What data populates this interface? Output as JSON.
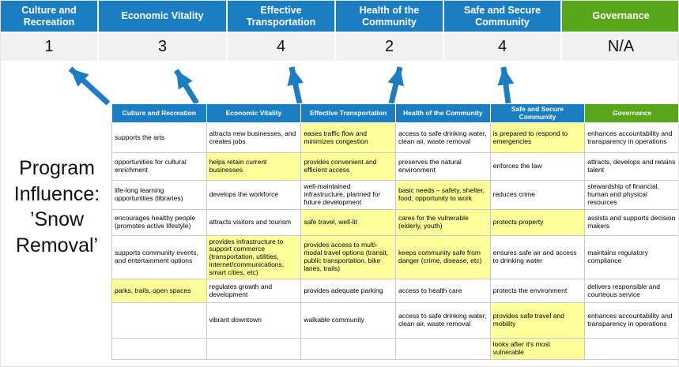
{
  "page": {
    "title": "Program Influence: ’Snow Removal’"
  },
  "colors": {
    "blue": "#1B7EC3",
    "green": "#58A71A",
    "highlight": "#FFFF99",
    "arrow": "#1E7CC0",
    "score_bg": "#F2F2F2"
  },
  "summary": {
    "columns": [
      {
        "label": "Culture and Recreation",
        "score": "1",
        "theme": "blue"
      },
      {
        "label": "Economic Vitality",
        "score": "3",
        "theme": "blue"
      },
      {
        "label": "Effective Transportation",
        "score": "4",
        "theme": "blue"
      },
      {
        "label": "Health of the Community",
        "score": "2",
        "theme": "blue"
      },
      {
        "label": "Safe and Secure Community",
        "score": "4",
        "theme": "blue"
      },
      {
        "label": "Governance",
        "score": "N/A",
        "theme": "green"
      }
    ]
  },
  "table": {
    "headers": [
      {
        "label": "Culture and Recreation",
        "theme": "blue"
      },
      {
        "label": "Economic Vitality",
        "theme": "blue"
      },
      {
        "label": "Effective Transportation",
        "theme": "blue"
      },
      {
        "label": "Health of the Community",
        "theme": "blue"
      },
      {
        "label": "Safe and Secure Community",
        "theme": "blue"
      },
      {
        "label": "Governance",
        "theme": "green"
      }
    ],
    "rows": [
      [
        {
          "text": "supports the arts",
          "highlight": false
        },
        {
          "text": "attracts new businesses, and creates jobs",
          "highlight": false
        },
        {
          "text": "eases traffic flow and minimizes congestion",
          "highlight": true
        },
        {
          "text": "access to safe drinking water, clean air, waste removal",
          "highlight": false
        },
        {
          "text": "is prepared to respond to emergencies",
          "highlight": true
        },
        {
          "text": "enhances accountability and transparency in operations",
          "highlight": false
        }
      ],
      [
        {
          "text": "opportunities for cultural enrichment",
          "highlight": false
        },
        {
          "text": "helps retain current businesses",
          "highlight": true
        },
        {
          "text": "provides convenient and efficient access",
          "highlight": true
        },
        {
          "text": "preserves the natural environment",
          "highlight": false
        },
        {
          "text": "enforces the law",
          "highlight": false
        },
        {
          "text": "attracts, develops and retains talent",
          "highlight": false
        }
      ],
      [
        {
          "text": "life-long learning opportunities (libraries)",
          "highlight": false
        },
        {
          "text": "develops the workforce",
          "highlight": false
        },
        {
          "text": "well-maintained infrastructure, planned for future development",
          "highlight": false
        },
        {
          "text": "basic needs – safety, shelter, food, opportunity to work",
          "highlight": true
        },
        {
          "text": "reduces crime",
          "highlight": false
        },
        {
          "text": "stewardship of financial, human and physical resources",
          "highlight": false
        }
      ],
      [
        {
          "text": "encourages healthy people (promotes active lifestyle)",
          "highlight": false
        },
        {
          "text": "attracts visitors and tourism",
          "highlight": false
        },
        {
          "text": "safe travel, well-lit",
          "highlight": true
        },
        {
          "text": "cares for the vulnerable (elderly, youth)",
          "highlight": true
        },
        {
          "text": "protects property",
          "highlight": true
        },
        {
          "text": "assists and supports decision makers",
          "highlight": false
        }
      ],
      [
        {
          "text": "supports community events, and entertainment options",
          "highlight": false
        },
        {
          "text": "provides infrastructure to support commerce (transportation, utilities, internet/communications, smart cities, etc)",
          "highlight": true
        },
        {
          "text": "provides access to multi-modal travel options (transit, public transportation, bike lanes, trails)",
          "highlight": true
        },
        {
          "text": "keeps community safe from danger (crime, disease, etc)",
          "highlight": true
        },
        {
          "text": "ensures safe air and access to drinking water",
          "highlight": false
        },
        {
          "text": "maintains regulatory compliance",
          "highlight": false
        }
      ],
      [
        {
          "text": "parks, trails, open spaces",
          "highlight": true
        },
        {
          "text": "regulates growth and development",
          "highlight": false
        },
        {
          "text": "provides adequate parking",
          "highlight": false
        },
        {
          "text": "access to health care",
          "highlight": false
        },
        {
          "text": "protects the environment",
          "highlight": false
        },
        {
          "text": "delivers responsible and courteous service",
          "highlight": false
        }
      ],
      [
        {
          "text": "",
          "highlight": false
        },
        {
          "text": "vibrant downtown",
          "highlight": false
        },
        {
          "text": "walkable community",
          "highlight": false
        },
        {
          "text": "access to safe drinking water, clean air, waste removal",
          "highlight": false
        },
        {
          "text": "provides safe travel and mobility",
          "highlight": true
        },
        {
          "text": "enhances accountability and transparency in operations",
          "highlight": false
        }
      ],
      [
        {
          "text": "",
          "highlight": false
        },
        {
          "text": "",
          "highlight": false
        },
        {
          "text": "",
          "highlight": false
        },
        {
          "text": "",
          "highlight": false
        },
        {
          "text": "looks after it's most vulnerable",
          "highlight": true
        },
        {
          "text": "",
          "highlight": false
        }
      ]
    ]
  }
}
